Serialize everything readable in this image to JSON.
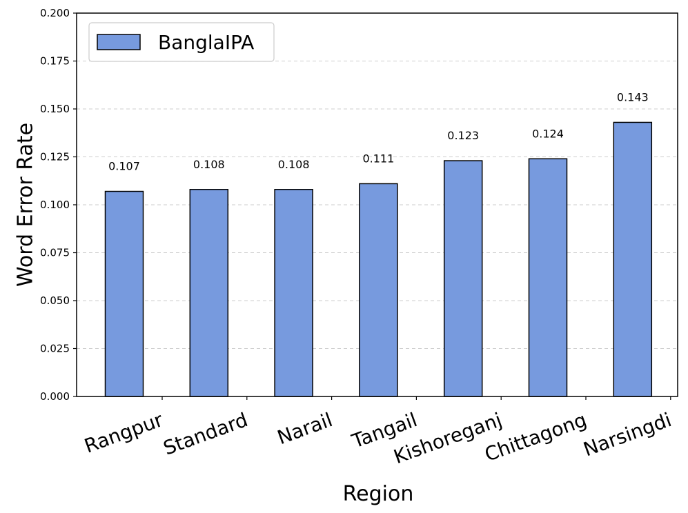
{
  "chart_data": {
    "type": "bar",
    "title": "",
    "xlabel": "Region",
    "ylabel": "Word Error Rate",
    "categories": [
      "Rangpur",
      "Standard",
      "Narail",
      "Tangail",
      "Kishoreganj",
      "Chittagong",
      "Narsingdi"
    ],
    "series": [
      {
        "name": "BanglaIPA",
        "values": [
          0.107,
          0.108,
          0.108,
          0.111,
          0.123,
          0.124,
          0.143
        ],
        "value_labels": [
          "0.107",
          "0.108",
          "0.108",
          "0.111",
          "0.123",
          "0.124",
          "0.143"
        ],
        "color": "#779ADE",
        "edge_color": "#000000"
      }
    ],
    "ylim": [
      0,
      0.2
    ],
    "yticks": [
      0,
      0.025,
      0.05,
      0.075,
      0.1,
      0.125,
      0.15,
      0.175,
      0.2
    ],
    "ytick_labels": [
      "0.000",
      "0.025",
      "0.050",
      "0.075",
      "0.100",
      "0.125",
      "0.150",
      "0.175",
      "0.200"
    ],
    "grid": "y-dashed",
    "legend": {
      "position": "top-left",
      "entries": [
        "BanglaIPA"
      ]
    }
  }
}
